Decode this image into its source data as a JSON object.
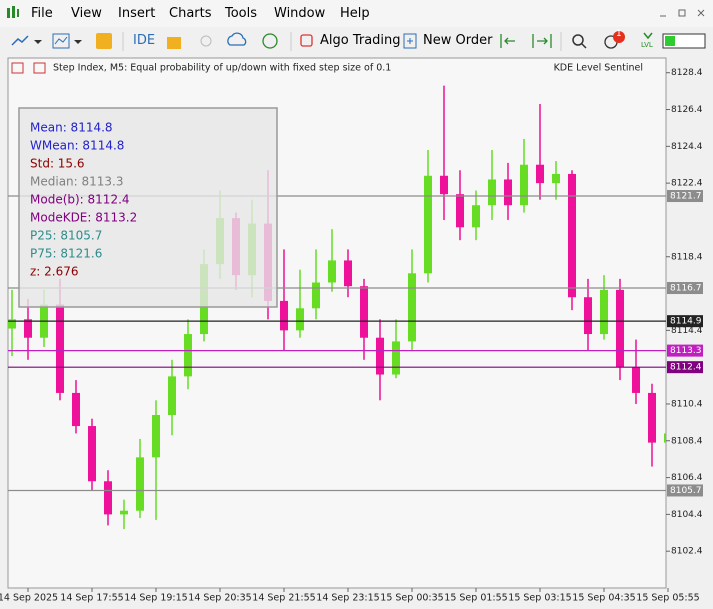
{
  "menu": [
    "File",
    "View",
    "Insert",
    "Charts",
    "Tools",
    "Window",
    "Help"
  ],
  "toolbar": {
    "ide": "IDE",
    "algo_trading": "Algo Trading",
    "new_order": "New Order",
    "notifications": "1",
    "level": "LVL"
  },
  "chart_data": {
    "type": "candlestick",
    "title": "Step Index, M5: Equal probability of up/down with fixed step size of 0.1",
    "indicator": "KDE Level Sentinel",
    "up_color": "#66dd22",
    "down_color": "#ee1199",
    "categories": [
      null,
      "14 Sep 2025",
      null,
      null,
      null,
      "14 Sep 17:55",
      null,
      null,
      null,
      "14 Sep 19:15",
      null,
      null,
      null,
      "14 Sep 20:35",
      null,
      null,
      null,
      "14 Sep 21:55",
      null,
      null,
      null,
      "14 Sep 23:15",
      null,
      null,
      null,
      "15 Sep 00:35",
      null,
      null,
      null,
      "15 Sep 01:55",
      null,
      null,
      null,
      "15 Sep 03:15",
      null,
      null,
      null,
      "15 Sep 04:35",
      null,
      null,
      null,
      "15 Sep 05:55"
    ],
    "ohlc": [
      [
        8114.5,
        8116.6,
        8113.0,
        8115.0
      ],
      [
        8115.0,
        8116.1,
        8112.8,
        8114.0
      ],
      [
        8114.0,
        8116.6,
        8113.5,
        8115.8
      ],
      [
        8115.8,
        8117.2,
        8110.6,
        8111.0
      ],
      [
        8111.0,
        8111.7,
        8108.8,
        8109.2
      ],
      [
        8109.2,
        8109.6,
        8105.7,
        8106.2
      ],
      [
        8106.2,
        8106.8,
        8103.8,
        8104.4
      ],
      [
        8104.4,
        8105.2,
        8103.6,
        8104.6
      ],
      [
        8104.6,
        8108.5,
        8104.2,
        8107.5
      ],
      [
        8107.5,
        8110.6,
        8104.1,
        8109.8
      ],
      [
        8109.8,
        8112.8,
        8108.7,
        8111.9
      ],
      [
        8111.9,
        8115.0,
        8111.2,
        8114.2
      ],
      [
        8114.2,
        8118.8,
        8113.8,
        8118.0
      ],
      [
        8118.0,
        8122.0,
        8117.2,
        8120.5
      ],
      [
        8120.5,
        8120.8,
        8116.6,
        8117.4
      ],
      [
        8117.4,
        8121.5,
        8116.2,
        8120.2
      ],
      [
        8120.2,
        8123.1,
        8115.0,
        8116.0
      ],
      [
        8116.0,
        8118.8,
        8113.3,
        8114.4
      ],
      [
        8114.4,
        8117.7,
        8114.0,
        8115.6
      ],
      [
        8115.6,
        8118.8,
        8115.0,
        8117.0
      ],
      [
        8117.0,
        8119.9,
        8116.5,
        8118.2
      ],
      [
        8118.2,
        8118.8,
        8116.2,
        8116.8
      ],
      [
        8116.8,
        8117.2,
        8112.8,
        8114.0
      ],
      [
        8114.0,
        8115.0,
        8110.6,
        8112.0
      ],
      [
        8112.0,
        8115.0,
        8111.8,
        8113.8
      ],
      [
        8113.8,
        8118.8,
        8113.3,
        8117.5
      ],
      [
        8117.5,
        8124.2,
        8117.0,
        8122.8
      ],
      [
        8122.8,
        8127.7,
        8120.4,
        8121.8
      ],
      [
        8121.8,
        8123.1,
        8119.3,
        8120.0
      ],
      [
        8120.0,
        8122.0,
        8119.3,
        8121.2
      ],
      [
        8121.2,
        8124.2,
        8120.4,
        8122.6
      ],
      [
        8122.6,
        8123.5,
        8120.4,
        8121.2
      ],
      [
        8121.2,
        8124.8,
        8120.8,
        8123.4
      ],
      [
        8123.4,
        8126.7,
        8121.5,
        8122.4
      ],
      [
        8122.4,
        8123.6,
        8121.5,
        8122.9
      ],
      [
        8122.9,
        8123.1,
        8115.5,
        8116.2
      ],
      [
        8116.2,
        8117.2,
        8113.3,
        8114.2
      ],
      [
        8114.2,
        8117.4,
        8113.9,
        8116.6
      ],
      [
        8116.6,
        8117.2,
        8111.7,
        8112.4
      ],
      [
        8112.4,
        8113.9,
        8110.4,
        8111.0
      ],
      [
        8111.0,
        8111.5,
        8107.0,
        8108.3
      ],
      [
        8108.3,
        8109.0,
        8107.2,
        8108.8
      ]
    ],
    "ylim": [
      8100.4,
      8129.2
    ],
    "yticks": [
      8128.4,
      8126.4,
      8124.4,
      8122.4,
      8118.4,
      8114.4,
      8110.4,
      8108.4,
      8106.4,
      8104.4,
      8102.4
    ],
    "levels": [
      {
        "value": 8121.7,
        "color": "#8c8c8c"
      },
      {
        "value": 8116.7,
        "color": "#8c8c8c"
      },
      {
        "value": 8114.9,
        "color": "#222222"
      },
      {
        "value": 8113.3,
        "color": "#c020c0"
      },
      {
        "value": 8112.4,
        "color": "#800080"
      },
      {
        "value": 8105.7,
        "color": "#8c8c8c"
      }
    ],
    "stats": [
      {
        "text": "Mean: 8114.8",
        "color": "#2222cc"
      },
      {
        "text": "WMean: 8114.8",
        "color": "#2222cc"
      },
      {
        "text": "Std: 15.6",
        "color": "#8b0000"
      },
      {
        "text": "Median: 8113.3",
        "color": "#808080"
      },
      {
        "text": "Mode(b): 8112.4",
        "color": "#800080"
      },
      {
        "text": "ModeKDE: 8113.2",
        "color": "#800080"
      },
      {
        "text": "P25: 8105.7",
        "color": "#2e8b8b"
      },
      {
        "text": "P75: 8121.6",
        "color": "#2e8b8b"
      },
      {
        "text": "z: 2.676",
        "color": "#8b0000"
      }
    ]
  }
}
